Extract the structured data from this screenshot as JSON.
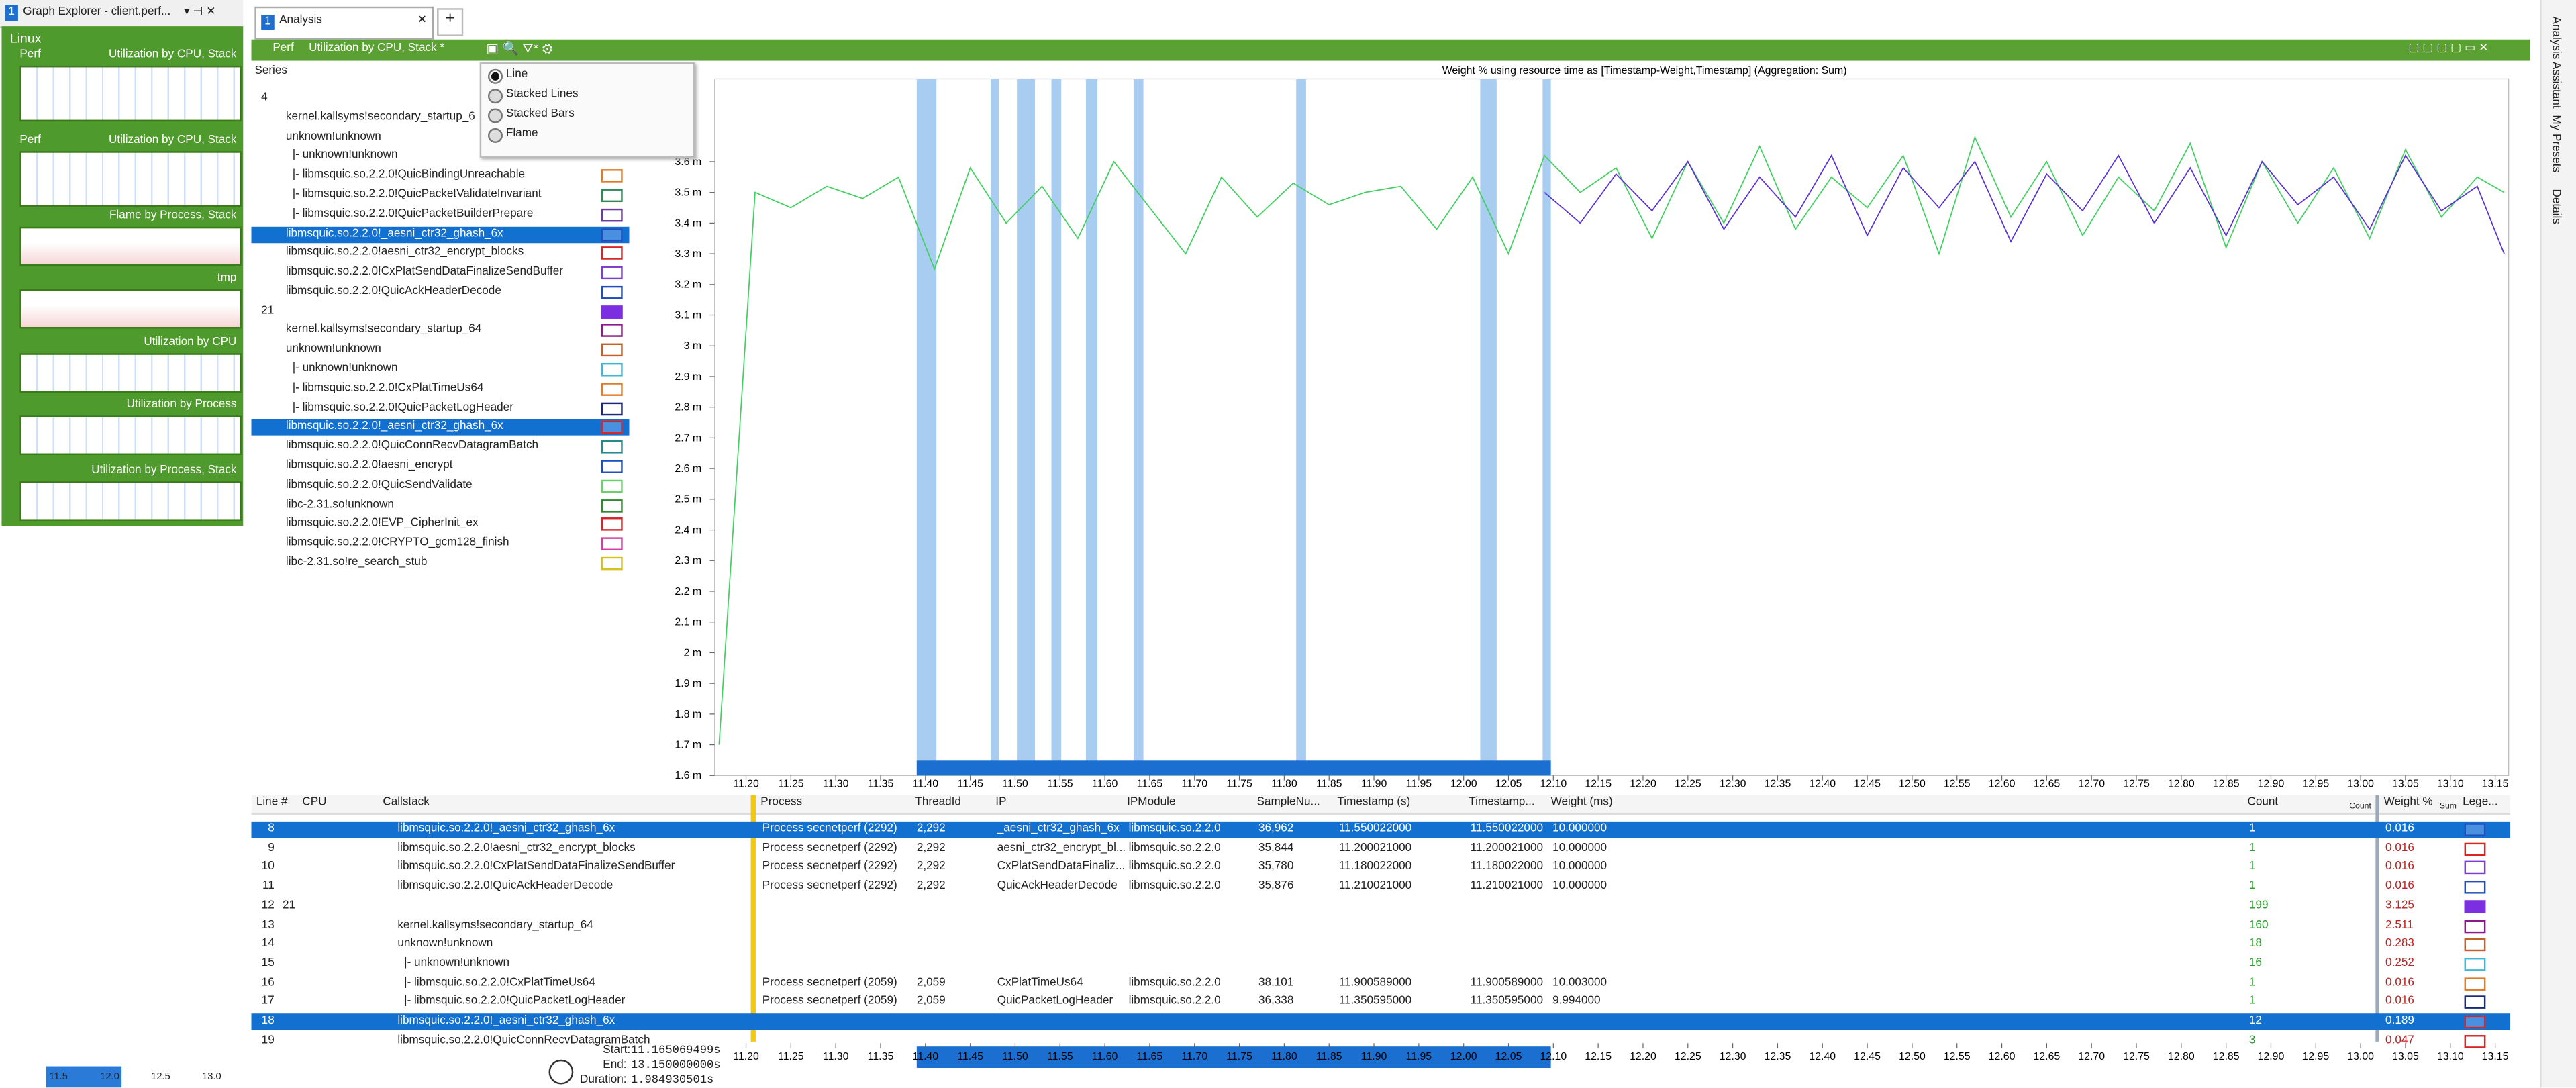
{
  "window": {
    "explorer_title": "Graph Explorer - client.perf...",
    "explorer_tab_number": "1",
    "group": "Linux",
    "thumbnails": [
      {
        "left": "Perf",
        "right": "Utilization by CPU, Stack"
      },
      {
        "left": "Perf",
        "right": "Utilization by CPU, Stack"
      },
      {
        "right": "Flame by Process, Stack"
      },
      {
        "right": "tmp"
      },
      {
        "right": "Utilization by CPU"
      },
      {
        "right": "Utilization by Process"
      },
      {
        "right": "Utilization by Process, Stack"
      }
    ],
    "mini_axis": [
      "11.5",
      "12.0",
      "12.5",
      "13.0"
    ],
    "tab": {
      "number": "1",
      "label": "Analysis",
      "add": "+"
    },
    "toolbar": {
      "provider": "Perf",
      "preset": "Utilization by CPU, Stack *"
    },
    "menu": [
      "Line",
      "Stacked Lines",
      "Stacked Bars",
      "Flame"
    ],
    "sidebar": [
      "Analysis Assistant",
      "My Presets",
      "Details"
    ],
    "series_header": "Series",
    "series_list": [
      {
        "label": "4"
      },
      {
        "label": "kernel.kallsyms!secondary_startup_6"
      },
      {
        "label": "unknown!unknown"
      },
      {
        "label": "|- unknown!unknown"
      },
      {
        "label": "|- libmsquic.so.2.2.0!QuicBindingUnreachable",
        "color": "#e07b28"
      },
      {
        "label": "|- libmsquic.so.2.2.0!QuicPacketValidateInvariant",
        "color": "#2e8b57"
      },
      {
        "label": "|- libmsquic.so.2.2.0!QuicPacketBuilderPrepare",
        "color": "#6a3d9a"
      },
      {
        "label": "libmsquic.so.2.2.0!_aesni_ctr32_ghash_6x",
        "color": "#1f4fbf",
        "selected": true
      },
      {
        "label": "libmsquic.so.2.2.0!aesni_ctr32_encrypt_blocks",
        "color": "#d62728"
      },
      {
        "label": "libmsquic.so.2.2.0!CxPlatSendDataFinalizeSendBuffer",
        "color": "#7b3fd0"
      },
      {
        "label": "libmsquic.so.2.2.0!QuicAckHeaderDecode",
        "color": "#1f4fbf"
      },
      {
        "label": "21",
        "color": "#7b2fe0",
        "filled": true
      },
      {
        "label": "kernel.kallsyms!secondary_startup_64",
        "color": "#8b1a8b"
      },
      {
        "label": "unknown!unknown",
        "color": "#c0602a"
      },
      {
        "label": "|- unknown!unknown",
        "color": "#3cb8d8"
      },
      {
        "label": "|- libmsquic.so.2.2.0!CxPlatTimeUs64",
        "color": "#e07b28"
      },
      {
        "label": "|- libmsquic.so.2.2.0!QuicPacketLogHeader",
        "color": "#1a2a7a"
      },
      {
        "label": "libmsquic.so.2.2.0!_aesni_ctr32_ghash_6x",
        "color": "#d62728",
        "selected": true
      },
      {
        "label": "libmsquic.so.2.2.0!QuicConnRecvDatagramBatch",
        "color": "#2a8a8a"
      },
      {
        "label": "libmsquic.so.2.2.0!aesni_encrypt",
        "color": "#1f4fbf"
      },
      {
        "label": "libmsquic.so.2.2.0!QuicSendValidate",
        "color": "#6ad06a"
      },
      {
        "label": "libc-2.31.so!unknown",
        "color": "#2e8b2e"
      },
      {
        "label": "libmsquic.so.2.2.0!EVP_CipherInit_ex",
        "color": "#d62728"
      },
      {
        "label": "libmsquic.so.2.2.0!CRYPTO_gcm128_finish",
        "color": "#d040a0"
      },
      {
        "label": "libc-2.31.so!re_search_stub",
        "color": "#d8c020"
      }
    ],
    "table": {
      "columns": {
        "line": "Line #",
        "cpu": "CPU",
        "callstack": "Callstack",
        "process": "Process",
        "thread": "ThreadId",
        "ip": "IP",
        "module": "IPModule",
        "sample": "SampleNu...",
        "ts": "Timestamp (s)",
        "ts2": "Timestamp...",
        "weight": "Weight (ms)",
        "count": "Count",
        "pct": "Weight %",
        "legend": "Lege..."
      },
      "count_agg": "Count",
      "pct_agg": "Sum",
      "rows": [
        {
          "line": "8",
          "callstack": "libmsquic.so.2.2.0!_aesni_ctr32_ghash_6x",
          "process": "Process secnetperf (2292)",
          "thread": "2,292",
          "ip": "_aesni_ctr32_ghash_6x",
          "module": "libmsquic.so.2.2.0",
          "sample": "36,962",
          "ts": "11.550022000",
          "ts2": "11.550022000",
          "weight": "10.000000",
          "count": "1",
          "pct": "0.016",
          "legend": "#1f4fbf",
          "selected": true
        },
        {
          "line": "9",
          "callstack": "libmsquic.so.2.2.0!aesni_ctr32_encrypt_blocks",
          "process": "Process secnetperf (2292)",
          "thread": "2,292",
          "ip": "aesni_ctr32_encrypt_bl...",
          "module": "libmsquic.so.2.2.0",
          "sample": "35,844",
          "ts": "11.200021000",
          "ts2": "11.200021000",
          "weight": "10.000000",
          "count": "1",
          "pct": "0.016",
          "legend": "#d62728"
        },
        {
          "line": "10",
          "callstack": "libmsquic.so.2.2.0!CxPlatSendDataFinalizeSendBuffer",
          "process": "Process secnetperf (2292)",
          "thread": "2,292",
          "ip": "CxPlatSendDataFinaliz...",
          "module": "libmsquic.so.2.2.0",
          "sample": "35,780",
          "ts": "11.180022000",
          "ts2": "11.180022000",
          "weight": "10.000000",
          "count": "1",
          "pct": "0.016",
          "legend": "#7b3fd0"
        },
        {
          "line": "11",
          "callstack": "libmsquic.so.2.2.0!QuicAckHeaderDecode",
          "process": "Process secnetperf (2292)",
          "thread": "2,292",
          "ip": "QuicAckHeaderDecode",
          "module": "libmsquic.so.2.2.0",
          "sample": "35,876",
          "ts": "11.210021000",
          "ts2": "11.210021000",
          "weight": "10.000000",
          "count": "1",
          "pct": "0.016",
          "legend": "#1f4fbf"
        },
        {
          "line": "12",
          "group": "21",
          "count": "199",
          "pct": "3.125",
          "legend": "#7b2fe0"
        },
        {
          "line": "13",
          "callstack": "kernel.kallsyms!secondary_startup_64",
          "count": "160",
          "pct": "2.511",
          "legend": "#8b1a8b"
        },
        {
          "line": "14",
          "callstack": "unknown!unknown",
          "count": "18",
          "pct": "0.283",
          "legend": "#c0602a"
        },
        {
          "line": "15",
          "callstack": "|- unknown!unknown",
          "count": "16",
          "pct": "0.252",
          "legend": "#3cb8d8"
        },
        {
          "line": "16",
          "callstack": "|- libmsquic.so.2.2.0!CxPlatTimeUs64",
          "process": "Process secnetperf (2059)",
          "thread": "2,059",
          "ip": "CxPlatTimeUs64",
          "module": "libmsquic.so.2.2.0",
          "sample": "38,101",
          "ts": "11.900589000",
          "ts2": "11.900589000",
          "weight": "10.003000",
          "count": "1",
          "pct": "0.016",
          "legend": "#e07b28"
        },
        {
          "line": "17",
          "callstack": "|- libmsquic.so.2.2.0!QuicPacketLogHeader",
          "process": "Process secnetperf (2059)",
          "thread": "2,059",
          "ip": "QuicPacketLogHeader",
          "module": "libmsquic.so.2.2.0",
          "sample": "36,338",
          "ts": "11.350595000",
          "ts2": "11.350595000",
          "weight": "9.994000",
          "count": "1",
          "pct": "0.016",
          "legend": "#1a2a7a"
        },
        {
          "line": "18",
          "callstack": "libmsquic.so.2.2.0!_aesni_ctr32_ghash_6x",
          "count": "12",
          "pct": "0.189",
          "legend": "#d62728",
          "selected": true
        },
        {
          "line": "19",
          "callstack": "libmsquic.so.2.2.0!QuicConnRecvDatagramBatch",
          "count": "3",
          "pct": "0.047",
          "legend": "#d62728"
        }
      ]
    },
    "timeline": {
      "start_label": "Start:",
      "start": "11.165069499s",
      "end_label": "End:",
      "end": "13.150000000s",
      "duration_label": "Duration:",
      "duration": "1.984930501s"
    }
  },
  "chart_data": {
    "type": "line",
    "title": "Weight % using resource time as [Timestamp-Weight,Timestamp] (Aggregation: Sum)",
    "x": [
      11.17,
      11.21,
      11.25,
      11.29,
      11.33,
      11.37,
      11.41,
      11.45,
      11.49,
      11.53,
      11.57,
      11.61,
      11.65,
      11.69,
      11.73,
      11.77,
      11.81,
      11.85,
      11.89,
      11.93,
      11.97,
      12.01,
      12.05,
      12.09,
      12.13,
      12.17,
      12.21,
      12.25,
      12.29,
      12.33,
      12.37,
      12.41,
      12.45,
      12.49,
      12.53,
      12.57,
      12.61,
      12.65,
      12.69,
      12.73,
      12.77,
      12.81,
      12.85,
      12.89,
      12.93,
      12.97,
      13.01,
      13.05,
      13.09,
      13.13,
      13.16
    ],
    "series": [
      {
        "name": "libmsquic.so.2.2.0!QuicSendValidate",
        "color": "#40d060",
        "values": [
          1.7,
          3.5,
          3.45,
          3.52,
          3.48,
          3.55,
          3.25,
          3.58,
          3.4,
          3.52,
          3.35,
          3.6,
          3.45,
          3.3,
          3.55,
          3.42,
          3.53,
          3.46,
          3.5,
          3.52,
          3.38,
          3.55,
          3.3,
          3.62,
          3.5,
          3.58,
          3.35,
          3.6,
          3.4,
          3.65,
          3.38,
          3.55,
          3.45,
          3.62,
          3.3,
          3.68,
          3.42,
          3.6,
          3.36,
          3.55,
          3.44,
          3.66,
          3.32,
          3.6,
          3.4,
          3.58,
          3.35,
          3.64,
          3.42,
          3.55,
          3.5
        ]
      },
      {
        "name": "21",
        "color": "#5a30d8",
        "values": [
          null,
          null,
          null,
          null,
          null,
          null,
          null,
          null,
          null,
          null,
          null,
          null,
          null,
          null,
          null,
          null,
          null,
          null,
          null,
          null,
          null,
          null,
          null,
          3.5,
          3.4,
          3.56,
          3.44,
          3.6,
          3.38,
          3.55,
          3.42,
          3.62,
          3.36,
          3.58,
          3.45,
          3.6,
          3.34,
          3.56,
          3.44,
          3.62,
          3.4,
          3.58,
          3.36,
          3.6,
          3.46,
          3.55,
          3.38,
          3.62,
          3.44,
          3.52,
          3.3
        ]
      }
    ],
    "xlim": [
      11.165,
      13.165
    ],
    "ylim": [
      1.6,
      3.87
    ],
    "xticks": [
      {
        "value": 11.2,
        "label": "11.20"
      },
      {
        "value": 11.25,
        "label": "11.25"
      },
      {
        "value": 11.3,
        "label": "11.30"
      },
      {
        "value": 11.35,
        "label": "11.35"
      },
      {
        "value": 11.4,
        "label": "11.40"
      },
      {
        "value": 11.45,
        "label": "11.45"
      },
      {
        "value": 11.5,
        "label": "11.50"
      },
      {
        "value": 11.55,
        "label": "11.55"
      },
      {
        "value": 11.6,
        "label": "11.60"
      },
      {
        "value": 11.65,
        "label": "11.65"
      },
      {
        "value": 11.7,
        "label": "11.70"
      },
      {
        "value": 11.75,
        "label": "11.75"
      },
      {
        "value": 11.8,
        "label": "11.80"
      },
      {
        "value": 11.85,
        "label": "11.85"
      },
      {
        "value": 11.9,
        "label": "11.90"
      },
      {
        "value": 11.95,
        "label": "11.95"
      },
      {
        "value": 12.0,
        "label": "12.00"
      },
      {
        "value": 12.05,
        "label": "12.05"
      },
      {
        "value": 12.1,
        "label": "12.10"
      },
      {
        "value": 12.15,
        "label": "12.15"
      },
      {
        "value": 12.2,
        "label": "12.20"
      },
      {
        "value": 12.25,
        "label": "12.25"
      },
      {
        "value": 12.3,
        "label": "12.30"
      },
      {
        "value": 12.35,
        "label": "12.35"
      },
      {
        "value": 12.4,
        "label": "12.40"
      },
      {
        "value": 12.45,
        "label": "12.45"
      },
      {
        "value": 12.5,
        "label": "12.50"
      },
      {
        "value": 12.55,
        "label": "12.55"
      },
      {
        "value": 12.6,
        "label": "12.60"
      },
      {
        "value": 12.65,
        "label": "12.65"
      },
      {
        "value": 12.7,
        "label": "12.70"
      },
      {
        "value": 12.75,
        "label": "12.75"
      },
      {
        "value": 12.8,
        "label": "12.80"
      },
      {
        "value": 12.85,
        "label": "12.85"
      },
      {
        "value": 12.9,
        "label": "12.90"
      },
      {
        "value": 12.95,
        "label": "12.95"
      },
      {
        "value": 13.0,
        "label": "13.00"
      },
      {
        "value": 13.05,
        "label": "13.05"
      },
      {
        "value": 13.1,
        "label": "13.10"
      },
      {
        "value": 13.15,
        "label": "13.15"
      }
    ],
    "yticks": [
      {
        "value": 1.6,
        "label": "1.6 m"
      },
      {
        "value": 1.7,
        "label": "1.7 m"
      },
      {
        "value": 1.8,
        "label": "1.8 m"
      },
      {
        "value": 1.9,
        "label": "1.9 m"
      },
      {
        "value": 2.0,
        "label": "2 m"
      },
      {
        "value": 2.1,
        "label": "2.1 m"
      },
      {
        "value": 2.2,
        "label": "2.2 m"
      },
      {
        "value": 2.3,
        "label": "2.3 m"
      },
      {
        "value": 2.4,
        "label": "2.4 m"
      },
      {
        "value": 2.5,
        "label": "2.5 m"
      },
      {
        "value": 2.6,
        "label": "2.6 m"
      },
      {
        "value": 2.7,
        "label": "2.7 m"
      },
      {
        "value": 2.8,
        "label": "2.8 m"
      },
      {
        "value": 2.9,
        "label": "2.9 m"
      },
      {
        "value": 3.0,
        "label": "3 m"
      },
      {
        "value": 3.1,
        "label": "3.1 m"
      },
      {
        "value": 3.2,
        "label": "3.2 m"
      },
      {
        "value": 3.3,
        "label": "3.3 m"
      },
      {
        "value": 3.4,
        "label": "3.4 m"
      },
      {
        "value": 3.5,
        "label": "3.5 m"
      },
      {
        "value": 3.6,
        "label": "3.6 m"
      }
    ]
  }
}
